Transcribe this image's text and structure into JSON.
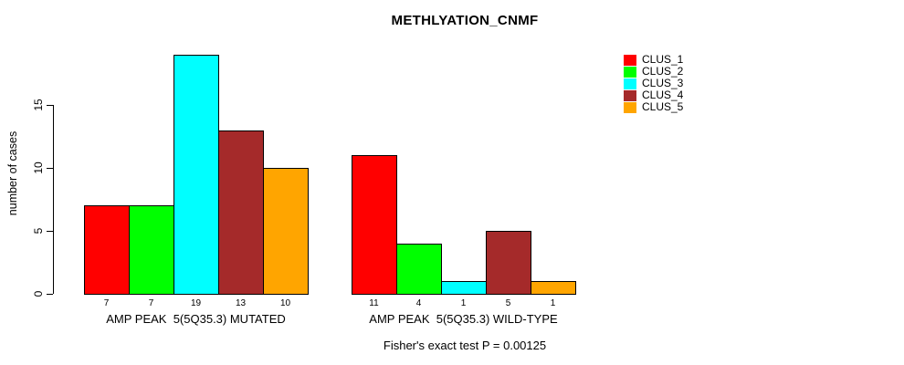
{
  "title": "METHLYATION_CNMF",
  "chart_data": {
    "type": "bar",
    "title": "METHLYATION_CNMF",
    "ylabel": "number of cases",
    "xlabel": "",
    "yticks": [
      0,
      5,
      10,
      15
    ],
    "ylim": [
      0,
      19.9
    ],
    "grid": false,
    "legend_position": "top-right",
    "legend": [
      {
        "label": "CLUS_1",
        "color": "#ff0000"
      },
      {
        "label": "CLUS_2",
        "color": "#00ff00"
      },
      {
        "label": "CLUS_3",
        "color": "#00ffff"
      },
      {
        "label": "CLUS_4",
        "color": "#a52a2a"
      },
      {
        "label": "CLUS_5",
        "color": "#ffa500"
      }
    ],
    "groups": [
      {
        "label": "AMP PEAK  5(5Q35.3) MUTATED",
        "values": [
          7,
          7,
          19,
          13,
          10
        ]
      },
      {
        "label": "AMP PEAK  5(5Q35.3) WILD-TYPE",
        "values": [
          11,
          4,
          1,
          5,
          1
        ]
      }
    ],
    "bar_value_labels_shown": true,
    "annotation": "Fisher's exact test P = 0.00125"
  }
}
